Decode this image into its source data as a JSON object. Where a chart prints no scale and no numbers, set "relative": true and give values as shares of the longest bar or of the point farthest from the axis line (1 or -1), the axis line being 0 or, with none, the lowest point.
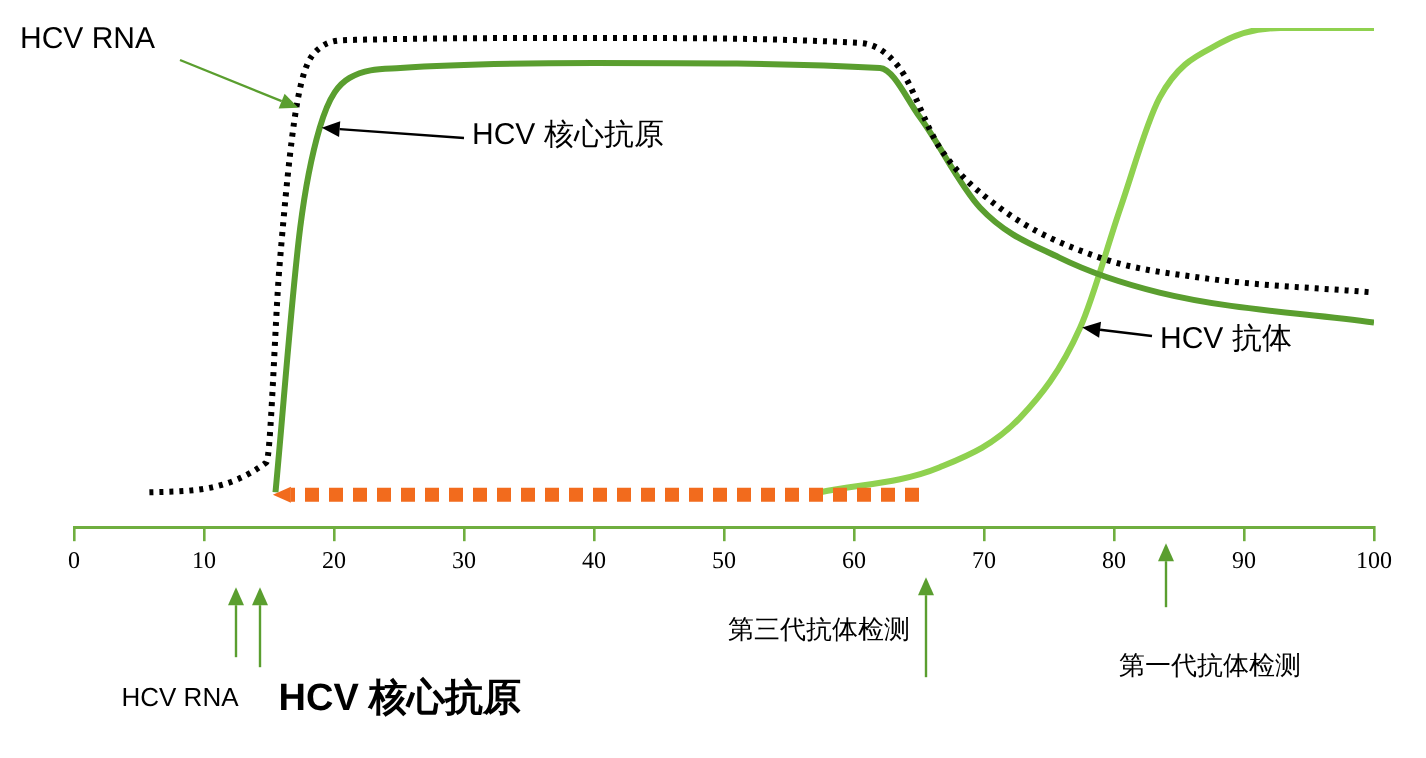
{
  "chart_data": {
    "type": "line",
    "relative": true,
    "xlim": [
      0,
      100
    ],
    "xticks": [
      0,
      10,
      20,
      30,
      40,
      50,
      60,
      70,
      80,
      90,
      100
    ],
    "grid": false,
    "legend": false,
    "marker": "none",
    "tick_labels": "x",
    "series": [
      {
        "color": "#000000",
        "line_style": "dotted",
        "x": [
          5.8,
          14.8,
          15.8,
          17.1,
          18.9,
          21.2,
          40,
          60.5,
          63.5,
          66.6,
          71.2,
          78.9,
          86.6,
          100
        ],
        "values": [
          0.07,
          0.13,
          0.52,
          0.84,
          0.96,
          0.976,
          0.98,
          0.97,
          0.92,
          0.76,
          0.64,
          0.54,
          0.5,
          0.47
        ]
      },
      {
        "color": "#5a9e2f",
        "line_style": "solid",
        "x": [
          15.5,
          17.4,
          18.9,
          21.2,
          25.1,
          40,
          62,
          65.1,
          69.7,
          75.8,
          83.5,
          100
        ],
        "values": [
          0.07,
          0.6,
          0.8,
          0.9,
          0.92,
          0.93,
          0.92,
          0.82,
          0.64,
          0.54,
          0.47,
          0.41
        ]
      },
      {
        "color": "#8fd14f",
        "line_style": "solid",
        "x": [
          57.4,
          66.6,
          72.8,
          77.4,
          80.5,
          83.5,
          88.2,
          92.8,
          100
        ],
        "values": [
          0.07,
          0.12,
          0.22,
          0.4,
          0.64,
          0.86,
          0.97,
          1,
          1
        ]
      }
    ],
    "annotations": [
      {
        "text": "HCV RNA",
        "x": 17.1,
        "y": 0.84
      },
      "HCV 核心抗原",
      {
        "text": "HCV 抗体",
        "x": 77.4,
        "y": 0.4
      },
      "HCV RNA",
      "HCV 核心抗原",
      "第三代抗体检测",
      "第一代抗体检测"
    ]
  }
}
